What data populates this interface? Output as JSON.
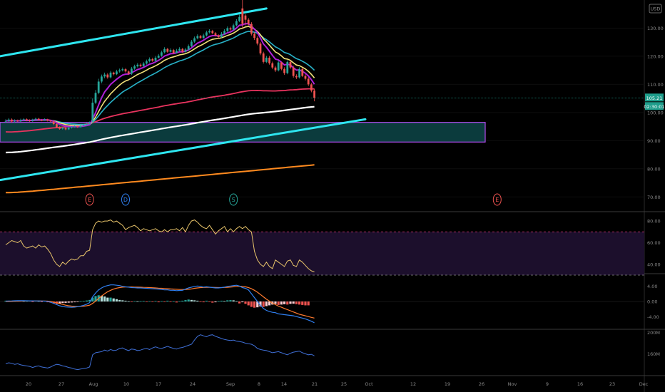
{
  "header": {
    "currency_label": "USD"
  },
  "price": {
    "last": "105.21",
    "countdown": "02:30:01",
    "tag_color": "#1f9d8b"
  },
  "colors": {
    "background": "#000000",
    "up_candle": "#26a69a",
    "down_candle": "#ef5350",
    "channel_line": "#2ee6f0",
    "ema_purple": "#b01fd8",
    "ema_yellow": "#f2e27a",
    "ema_teal": "#28b2c8",
    "ema_red": "#e8335e",
    "sma_white": "#ffffff",
    "sma_orange": "#ff8a1f",
    "zone_fill": "#0f4f52",
    "zone_border": "#b24df0",
    "rsi_line": "#e8c46a",
    "rsi_band": "#1c0f2c",
    "macd_line": "#2f7ff0",
    "signal_line": "#ff7a2e",
    "volume_line": "#3f6fd6"
  },
  "events": [
    {
      "letter": "E",
      "color": "#ef5350",
      "bar": 28
    },
    {
      "letter": "D",
      "color": "#2f7ff0",
      "bar": 40
    },
    {
      "letter": "S",
      "color": "#26a69a",
      "bar": 76
    },
    {
      "letter": "E",
      "color": "#ef5350",
      "bar": 164
    }
  ],
  "chart_data": [
    {
      "type": "candlestick",
      "title": "",
      "ylabel": "",
      "ylim": [
        65,
        140
      ],
      "y_ticks": [
        "130.00",
        "120.00",
        "110.00",
        "100.00",
        "90.00",
        "80.00",
        "70.00"
      ],
      "x_ticks": [
        "20",
        "27",
        "Aug",
        "10",
        "17",
        "24",
        "Sep",
        "8",
        "14",
        "21",
        "25",
        "Oct",
        "12",
        "19",
        "26",
        "Nov",
        "9",
        "16",
        "23",
        "Dec"
      ],
      "close": [
        97.0,
        97.5,
        96.8,
        97.2,
        96.9,
        97.4,
        97.6,
        97.2,
        97.0,
        97.5,
        97.8,
        97.4,
        97.3,
        97.6,
        97.1,
        96.8,
        95.9,
        94.8,
        94.2,
        94.5,
        94.0,
        94.6,
        94.9,
        95.1,
        94.8,
        95.3,
        95.6,
        96.0,
        96.5,
        103.5,
        107.0,
        111.0,
        112.8,
        113.5,
        112.5,
        114.2,
        113.6,
        114.6,
        115.0,
        115.4,
        114.6,
        113.8,
        115.6,
        116.4,
        117.0,
        116.5,
        117.4,
        118.2,
        119.0,
        118.4,
        119.5,
        120.2,
        121.4,
        122.6,
        121.6,
        122.2,
        121.2,
        122.0,
        122.6,
        121.6,
        122.4,
        123.6,
        125.2,
        126.4,
        127.2,
        126.5,
        127.4,
        128.5,
        129.0,
        128.2,
        127.4,
        126.8,
        128.0,
        129.0,
        130.0,
        129.5,
        131.0,
        132.5,
        134.0,
        131.5,
        133.0,
        131.5,
        128.0,
        126.5,
        124.5,
        121.0,
        118.0,
        119.5,
        117.5,
        116.0,
        115.0,
        117.8,
        115.5,
        114.0,
        118.0,
        116.0,
        113.0,
        112.5,
        115.5,
        113.0,
        112.0,
        110.0,
        107.8,
        105.2
      ],
      "open": [
        96.8,
        97.0,
        97.5,
        96.8,
        97.2,
        96.9,
        97.4,
        97.6,
        97.2,
        97.0,
        97.5,
        97.8,
        97.4,
        97.3,
        97.6,
        97.1,
        96.8,
        95.9,
        94.8,
        94.2,
        94.5,
        94.0,
        94.6,
        94.9,
        95.1,
        94.8,
        95.3,
        95.6,
        96.0,
        96.8,
        103.5,
        107.0,
        111.0,
        112.8,
        113.5,
        112.5,
        114.2,
        113.6,
        114.6,
        115.0,
        115.4,
        114.6,
        113.8,
        115.6,
        116.4,
        117.0,
        116.5,
        117.4,
        118.2,
        119.0,
        118.4,
        119.5,
        120.2,
        121.4,
        122.6,
        121.6,
        122.2,
        121.2,
        122.0,
        122.6,
        121.6,
        122.4,
        123.6,
        125.2,
        126.4,
        127.2,
        126.5,
        127.4,
        128.5,
        129.0,
        128.2,
        127.4,
        126.8,
        128.0,
        129.0,
        130.0,
        129.5,
        131.0,
        132.5,
        137.0,
        134.5,
        133.0,
        131.5,
        128.0,
        126.5,
        124.5,
        121.0,
        118.0,
        119.5,
        117.5,
        116.0,
        115.0,
        117.8,
        115.5,
        114.0,
        118.0,
        116.0,
        113.0,
        112.5,
        115.5,
        113.0,
        112.0,
        110.0,
        107.8
      ],
      "high": [
        97.6,
        98.0,
        97.9,
        97.6,
        97.5,
        97.8,
        98.0,
        97.9,
        97.6,
        97.8,
        98.2,
        98.1,
        97.7,
        97.9,
        97.8,
        97.4,
        97.1,
        96.2,
        95.1,
        94.9,
        94.8,
        94.9,
        95.2,
        95.4,
        95.3,
        95.6,
        95.9,
        96.3,
        96.8,
        105.0,
        108.0,
        112.0,
        113.5,
        114.2,
        114.0,
        114.8,
        114.5,
        115.2,
        115.6,
        116.0,
        115.8,
        115.0,
        116.2,
        117.0,
        117.6,
        117.5,
        118.0,
        118.8,
        119.6,
        119.5,
        120.1,
        120.8,
        122.0,
        123.2,
        123.0,
        122.8,
        122.6,
        122.6,
        123.2,
        123.0,
        123.0,
        124.2,
        125.8,
        127.0,
        127.8,
        127.6,
        128.0,
        129.1,
        129.6,
        129.4,
        128.6,
        127.8,
        128.6,
        129.6,
        130.6,
        130.5,
        131.6,
        133.2,
        134.8,
        141.0,
        135.0,
        133.6,
        132.1,
        128.6,
        127.1,
        125.1,
        121.6,
        120.1,
        120.1,
        118.1,
        116.6,
        118.4,
        118.0,
        116.1,
        118.6,
        118.5,
        116.6,
        113.6,
        116.1,
        115.8,
        113.6,
        112.6,
        110.5,
        108.4
      ],
      "low": [
        96.4,
        96.7,
        96.4,
        96.4,
        96.6,
        96.6,
        97.0,
        96.9,
        96.7,
        96.7,
        97.2,
        97.1,
        96.9,
        97.0,
        96.8,
        96.5,
        95.5,
        94.5,
        93.9,
        93.9,
        93.7,
        93.8,
        94.3,
        94.6,
        94.5,
        94.6,
        95.0,
        95.4,
        95.8,
        96.3,
        103.0,
        106.5,
        110.4,
        112.2,
        112.0,
        112.1,
        113.2,
        113.3,
        114.2,
        114.6,
        114.2,
        113.4,
        113.4,
        115.2,
        116.0,
        116.1,
        116.2,
        117.0,
        117.8,
        118.0,
        118.0,
        119.2,
        119.8,
        121.0,
        121.2,
        121.3,
        120.8,
        121.0,
        121.7,
        121.2,
        121.3,
        122.0,
        123.2,
        124.8,
        126.0,
        126.2,
        126.2,
        127.0,
        128.1,
        127.8,
        127.0,
        126.3,
        126.5,
        127.6,
        128.6,
        129.1,
        129.2,
        130.6,
        132.1,
        130.0,
        131.0,
        130.9,
        127.4,
        125.8,
        123.9,
        120.4,
        117.4,
        117.6,
        117.0,
        115.4,
        114.4,
        114.6,
        115.0,
        113.4,
        113.6,
        115.5,
        112.4,
        111.9,
        112.1,
        112.6,
        111.4,
        109.4,
        107.2,
        104.0
      ],
      "overlays": [
        {
          "kind": "channel_upper",
          "x": [
            0,
            87
          ],
          "y": [
            120,
            137
          ]
        },
        {
          "kind": "channel_lower",
          "x": [
            0,
            120
          ],
          "y": [
            76,
            97.6
          ]
        },
        {
          "kind": "zone",
          "x": [
            0,
            160
          ],
          "y": [
            89.5,
            96.5
          ]
        }
      ]
    },
    {
      "type": "line",
      "title": "",
      "ylim": [
        32,
        88
      ],
      "y_ticks": [
        "80.00",
        "60.00",
        "40.00"
      ],
      "bands": [
        70,
        30
      ],
      "values": [
        58,
        60,
        62,
        61,
        60,
        62,
        57,
        55,
        56,
        57,
        55,
        58,
        56,
        57,
        54,
        50,
        44,
        40,
        38,
        42,
        40,
        43,
        45,
        44,
        45,
        48,
        48,
        52,
        53,
        72,
        78,
        80,
        79,
        80,
        80,
        81,
        79,
        80,
        78,
        76,
        72,
        74,
        75,
        76,
        74,
        71,
        73,
        72,
        71,
        72,
        73,
        71,
        70,
        72,
        70,
        72,
        72,
        73,
        71,
        74,
        70,
        76,
        80,
        81,
        79,
        76,
        74,
        73,
        76,
        72,
        68,
        71,
        73,
        75,
        70,
        73,
        70,
        73,
        75,
        73,
        75,
        72,
        70,
        52,
        44,
        40,
        38,
        42,
        38,
        36,
        44,
        42,
        40,
        38,
        43,
        44,
        39,
        38,
        44,
        42,
        39,
        36,
        34,
        33
      ]
    },
    {
      "type": "bar+line",
      "title": "",
      "ylim": [
        -7,
        7
      ],
      "y_ticks": [
        "4.00",
        "0.00",
        "-4.00"
      ],
      "histogram": [
        0.2,
        0.2,
        0.1,
        0.1,
        0.15,
        0.15,
        0.1,
        0.1,
        0.15,
        -0.1,
        0.2,
        0.1,
        -0.1,
        0.15,
        -0.2,
        -0.3,
        -0.45,
        -0.6,
        -0.55,
        -0.4,
        -0.35,
        -0.3,
        -0.25,
        -0.2,
        -0.15,
        0.1,
        0.15,
        0.25,
        0.4,
        1.0,
        1.4,
        1.6,
        1.5,
        1.3,
        1.0,
        1.0,
        0.8,
        0.6,
        0.4,
        0.3,
        0.2,
        0.05,
        -0.05,
        0.1,
        0.05,
        0.1,
        0.15,
        -0.1,
        0.1,
        -0.1,
        0.15,
        -0.2,
        0.1,
        -0.15,
        0.2,
        -0.1,
        0.05,
        -0.25,
        0.1,
        0.2,
        0.35,
        0.5,
        0.4,
        0.3,
        0.2,
        -0.1,
        -0.2,
        0.2,
        -0.1,
        -0.3,
        -0.2,
        0.1,
        0.2,
        0.15,
        0.3,
        0.35,
        0.3,
        0.1,
        -0.5,
        -0.2,
        -0.6,
        -1.0,
        -1.4,
        -1.6,
        -1.5,
        -1.3,
        -1.4,
        -1.2,
        -1.0,
        -0.8,
        -0.6,
        -0.9,
        -0.8,
        -0.7,
        -0.8,
        -0.6,
        -0.55,
        -0.7,
        -0.8,
        -0.9,
        -1.0,
        -1.0
      ],
      "series": [
        {
          "values": [
            0.1,
            0.12,
            0.15,
            0.18,
            0.2,
            0.22,
            0.2,
            0.18,
            0.17,
            0.16,
            0.15,
            0.14,
            0.12,
            0.1,
            0.05,
            -0.2,
            -0.5,
            -0.8,
            -1.1,
            -1.3,
            -1.4,
            -1.45,
            -1.5,
            -1.45,
            -1.35,
            -1.2,
            -1.0,
            -0.7,
            -0.3,
            1.2,
            2.2,
            3.0,
            3.5,
            3.9,
            4.1,
            4.3,
            4.3,
            4.2,
            4.1,
            3.9,
            3.8,
            3.7,
            3.6,
            3.55,
            3.5,
            3.5,
            3.45,
            3.4,
            3.35,
            3.3,
            3.25,
            3.2,
            3.1,
            3.0,
            3.0,
            2.9,
            2.9,
            2.8,
            2.85,
            2.9,
            3.2,
            3.5,
            3.7,
            3.9,
            4.0,
            3.9,
            3.7,
            3.8,
            3.7,
            3.6,
            3.5,
            3.5,
            3.6,
            3.7,
            3.9,
            4.0,
            4.1,
            4.2,
            4.0,
            3.6,
            3.4,
            3.0,
            2.0,
            1.0,
            0.0,
            -1.0,
            -1.8,
            -2.3,
            -2.6,
            -2.8,
            -2.9,
            -3.2,
            -3.3,
            -3.4,
            -3.5,
            -3.6,
            -3.7,
            -3.9,
            -4.1,
            -4.3,
            -4.5,
            -4.8,
            -5.1,
            -5.5
          ]
        },
        {
          "values": [
            0.0,
            0.0,
            0.02,
            0.05,
            0.08,
            0.1,
            0.12,
            0.13,
            0.14,
            0.14,
            0.14,
            0.14,
            0.13,
            0.12,
            0.1,
            0.0,
            -0.15,
            -0.35,
            -0.55,
            -0.75,
            -0.95,
            -1.1,
            -1.2,
            -1.28,
            -1.3,
            -1.28,
            -1.22,
            -1.1,
            -0.95,
            -0.5,
            0.1,
            0.8,
            1.4,
            2.0,
            2.5,
            2.9,
            3.2,
            3.45,
            3.6,
            3.7,
            3.75,
            3.75,
            3.75,
            3.72,
            3.7,
            3.68,
            3.65,
            3.62,
            3.6,
            3.55,
            3.5,
            3.45,
            3.4,
            3.35,
            3.3,
            3.25,
            3.2,
            3.15,
            3.1,
            3.1,
            3.1,
            3.15,
            3.25,
            3.4,
            3.5,
            3.6,
            3.62,
            3.65,
            3.66,
            3.65,
            3.62,
            3.6,
            3.6,
            3.62,
            3.66,
            3.72,
            3.8,
            3.9,
            3.95,
            3.9,
            3.8,
            3.6,
            3.3,
            2.9,
            2.4,
            1.8,
            1.2,
            0.6,
            0.1,
            -0.4,
            -0.8,
            -1.2,
            -1.5,
            -1.8,
            -2.1,
            -2.4,
            -2.7,
            -3.0,
            -3.3,
            -3.5,
            -3.7,
            -3.9,
            -4.1,
            -4.3
          ]
        }
      ]
    },
    {
      "type": "line",
      "title": "",
      "ylim": [
        120,
        205
      ],
      "y_ticks": [
        "200M",
        "160M"
      ],
      "values": [
        141,
        143,
        142,
        140,
        141,
        139,
        138,
        137,
        136,
        134,
        136,
        137,
        135,
        134,
        133,
        135,
        138,
        140,
        139,
        137,
        136,
        134,
        133,
        131,
        130,
        131,
        132,
        133,
        135,
        158,
        162,
        163,
        164,
        167,
        165,
        168,
        166,
        167,
        170,
        171,
        168,
        166,
        169,
        168,
        166,
        167,
        169,
        170,
        168,
        171,
        173,
        171,
        170,
        172,
        174,
        172,
        170,
        169,
        171,
        172,
        174,
        176,
        178,
        186,
        193,
        196,
        194,
        192,
        195,
        196,
        193,
        191,
        189,
        187,
        186,
        185,
        186,
        184,
        183,
        182,
        180,
        179,
        178,
        175,
        170,
        168,
        167,
        166,
        164,
        162,
        163,
        164,
        162,
        160,
        158,
        161,
        163,
        164,
        165,
        162,
        160,
        158,
        159,
        156
      ]
    }
  ]
}
